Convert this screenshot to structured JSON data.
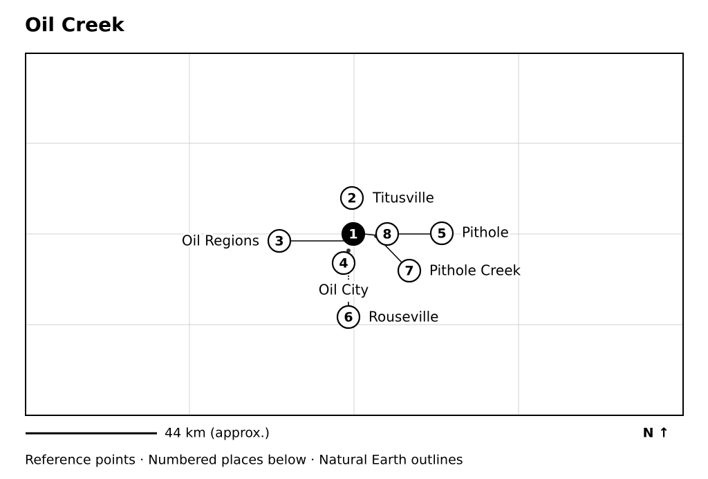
{
  "title": "Oil Creek",
  "places": [
    {
      "number": "1"
    },
    {
      "number": "2",
      "label": "Titusville"
    },
    {
      "number": "3",
      "label": "Oil Regions"
    },
    {
      "number": "4",
      "label": "Oil City"
    },
    {
      "number": "5",
      "label": "Pithole"
    },
    {
      "number": "6",
      "label": "Rouseville"
    },
    {
      "number": "7",
      "label": "Pithole Creek"
    },
    {
      "number": "8"
    }
  ],
  "scale_label": "44 km (approx.)",
  "north": "N ↑",
  "footer": "Reference points · Numbered places below · Natural Earth outlines"
}
